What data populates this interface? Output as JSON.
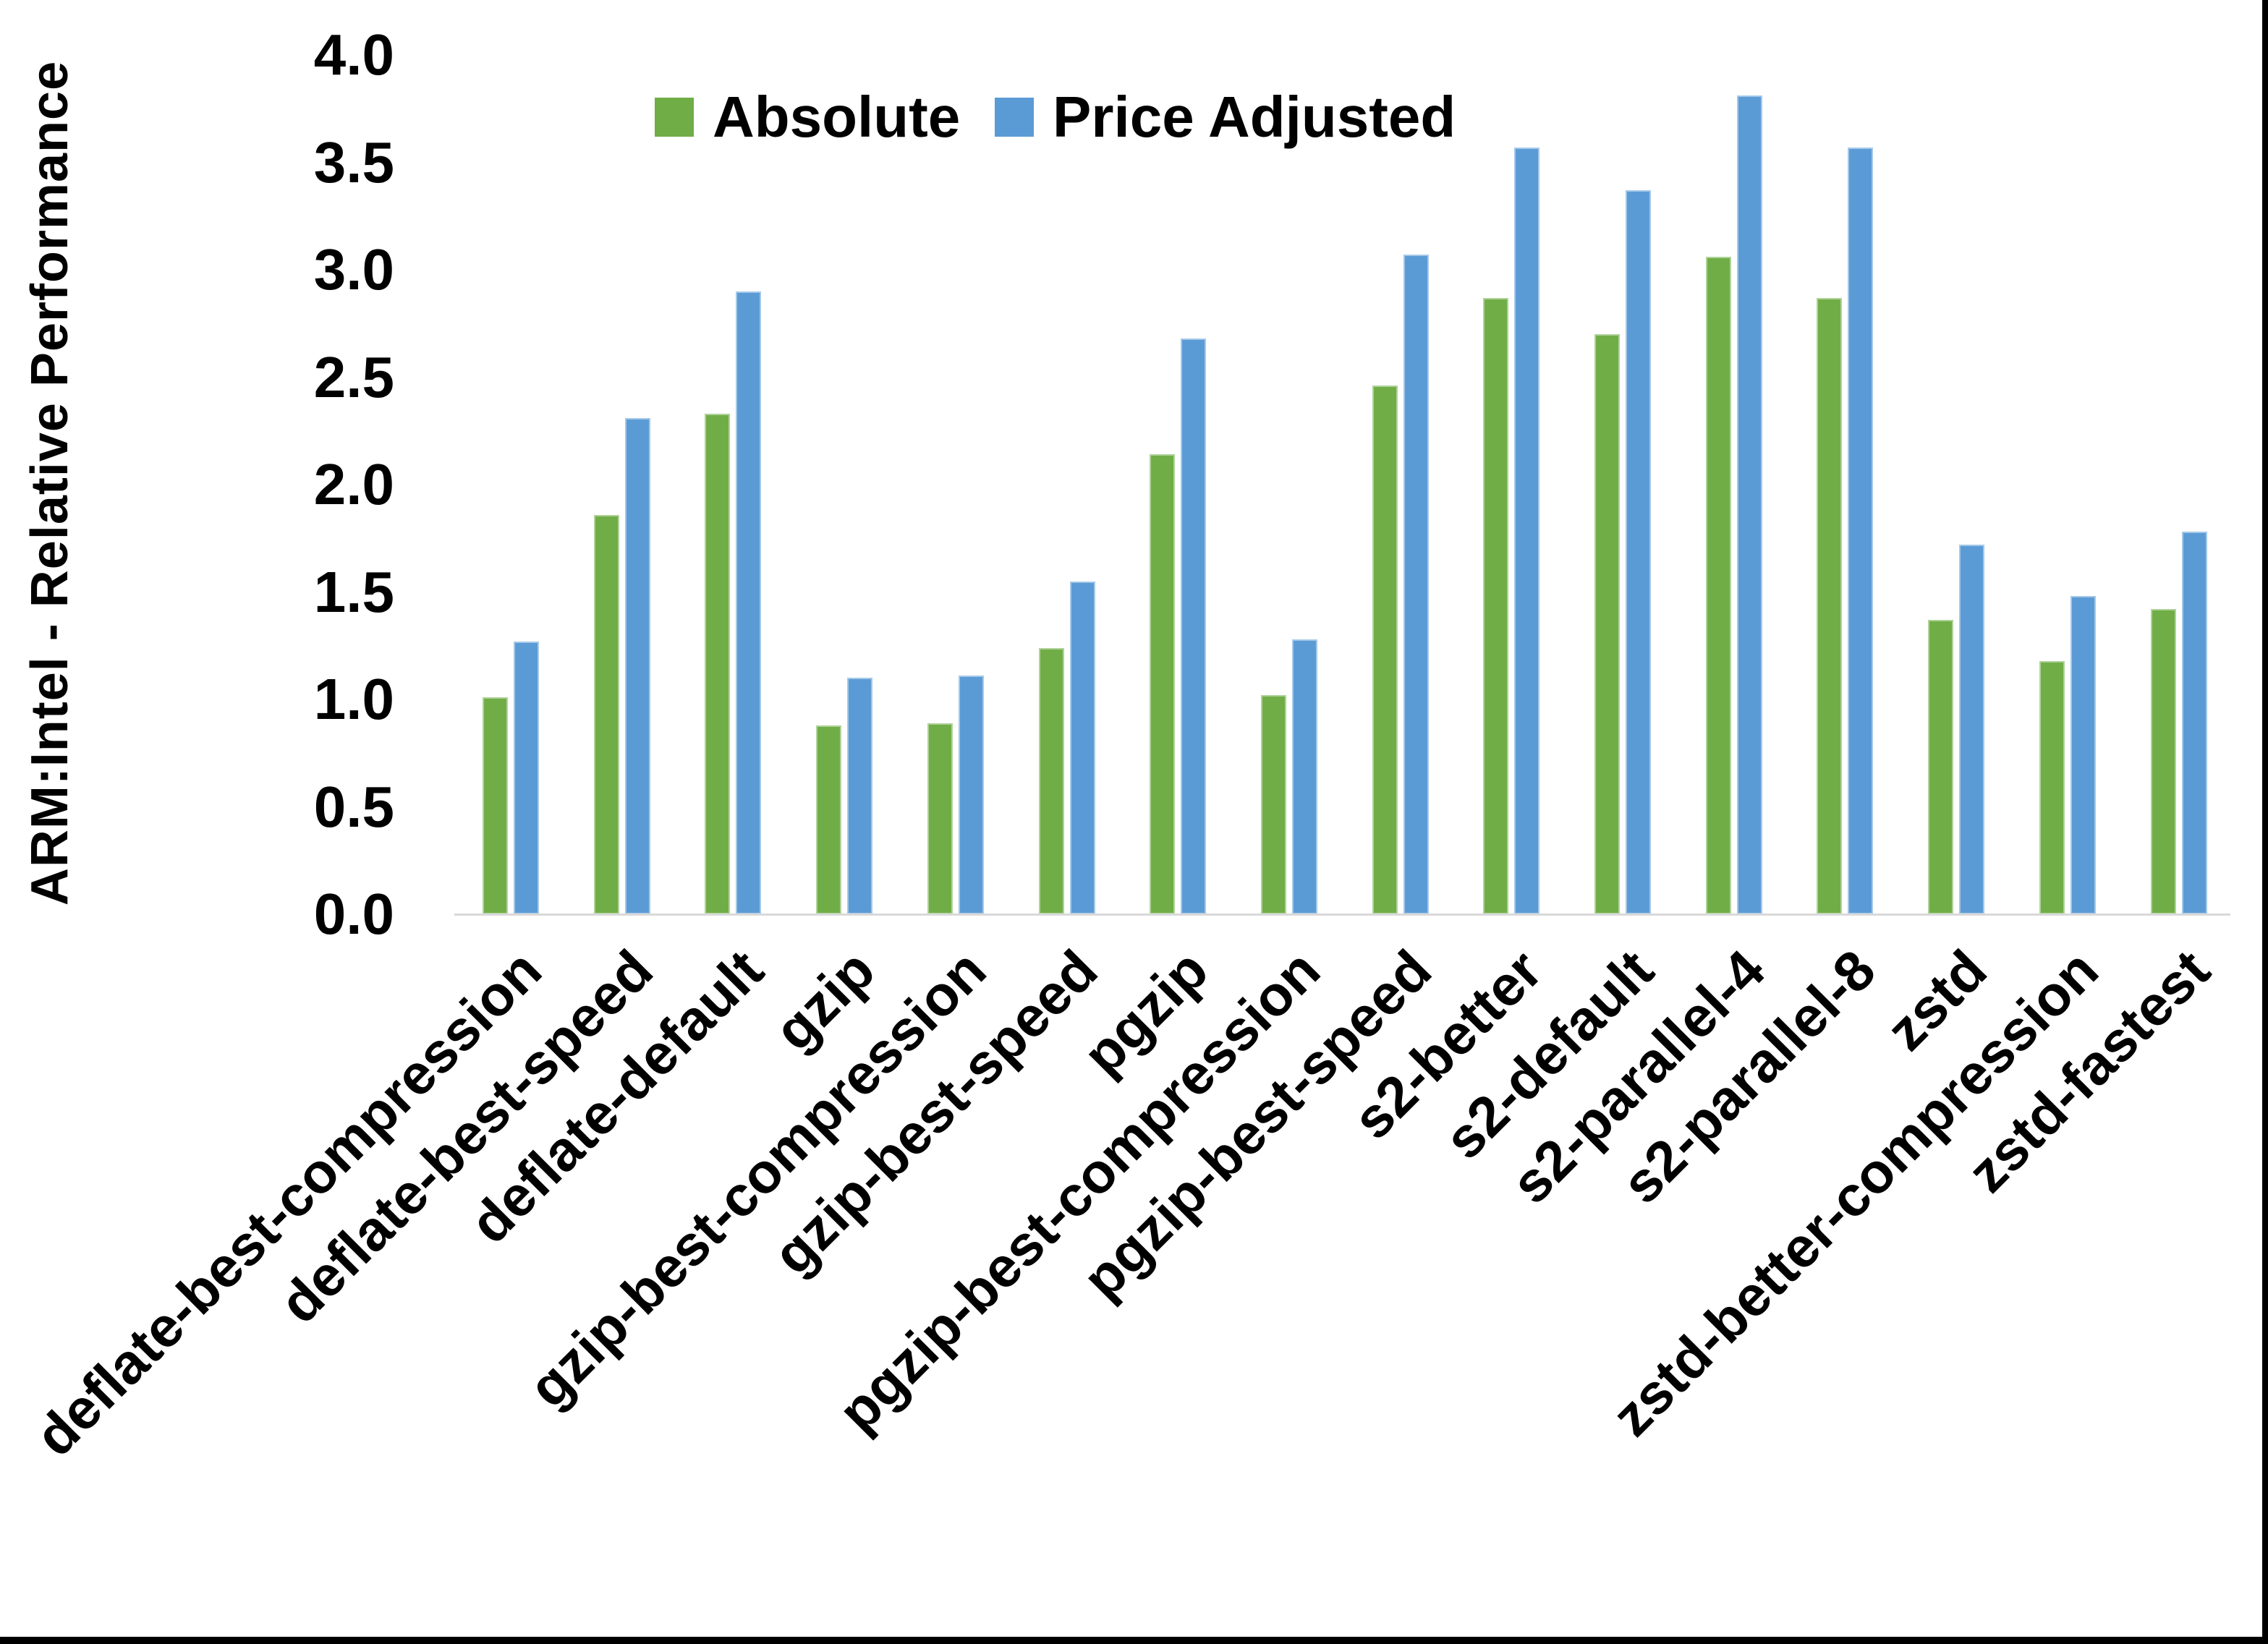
{
  "chart_data": {
    "type": "bar",
    "title": "",
    "xlabel": "",
    "ylabel": "ARM:Intel - Relative Performance",
    "ylim": [
      0.0,
      4.0
    ],
    "ytick_step": 0.5,
    "yticks": [
      "0.0",
      "0.5",
      "1.0",
      "1.5",
      "2.0",
      "2.5",
      "3.0",
      "3.5",
      "4.0"
    ],
    "grid": false,
    "legend_position": "top-center",
    "xticklabel_rotation_deg": 45,
    "categories": [
      "deflate-best-compression",
      "deflate-best-speed",
      "deflate-default",
      "gzip",
      "gzip-best-compression",
      "gzip-best-speed",
      "pgzip",
      "pgzip-best-compression",
      "pgzip-best-speed",
      "s2-better",
      "s2-default",
      "s2-parallel-4",
      "s2-parallel-8",
      "zstd",
      "zstd-better-compression",
      "zstd-fastest"
    ],
    "series": [
      {
        "name": "Absolute",
        "color": "#70AD47",
        "values": [
          1.01,
          1.86,
          2.33,
          0.88,
          0.89,
          1.24,
          2.14,
          1.02,
          2.46,
          2.87,
          2.7,
          3.06,
          2.87,
          1.37,
          1.18,
          1.42
        ]
      },
      {
        "name": "Price Adjusted",
        "color": "#5B9BD5",
        "values": [
          1.27,
          2.31,
          2.9,
          1.1,
          1.11,
          1.55,
          2.68,
          1.28,
          3.07,
          3.57,
          3.37,
          3.81,
          3.57,
          1.72,
          1.48,
          1.78
        ]
      }
    ]
  },
  "colors": {
    "background": "#FFFFFF",
    "axis_line": "#D9D9D9",
    "text": "#000000",
    "frame": "#000000"
  }
}
